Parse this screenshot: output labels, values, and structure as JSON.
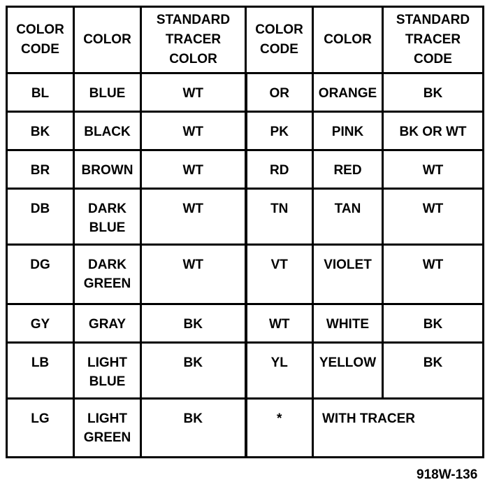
{
  "headers": [
    "COLOR CODE",
    "COLOR",
    "STANDARD TRACER COLOR",
    "COLOR CODE",
    "COLOR",
    "STANDARD TRACER CODE"
  ],
  "rows": [
    [
      "BL",
      "BLUE",
      "WT",
      "OR",
      "ORANGE",
      "BK"
    ],
    [
      "BK",
      "BLACK",
      "WT",
      "PK",
      "PINK",
      "BK OR WT"
    ],
    [
      "BR",
      "BROWN",
      "WT",
      "RD",
      "RED",
      "WT"
    ],
    [
      "DB",
      "DARK BLUE",
      "WT",
      "TN",
      "TAN",
      "WT"
    ],
    [
      "DG",
      "DARK GREEN",
      "WT",
      "VT",
      "VIOLET",
      "WT"
    ],
    [
      "GY",
      "GRAY",
      "BK",
      "WT",
      "WHITE",
      "BK"
    ],
    [
      "LB",
      "LIGHT BLUE",
      "BK",
      "YL",
      "YELLOW",
      "BK"
    ]
  ],
  "last_row": [
    "LG",
    "LIGHT GREEN",
    "BK",
    "*",
    "WITH TRACER"
  ],
  "caption": "918W-136"
}
